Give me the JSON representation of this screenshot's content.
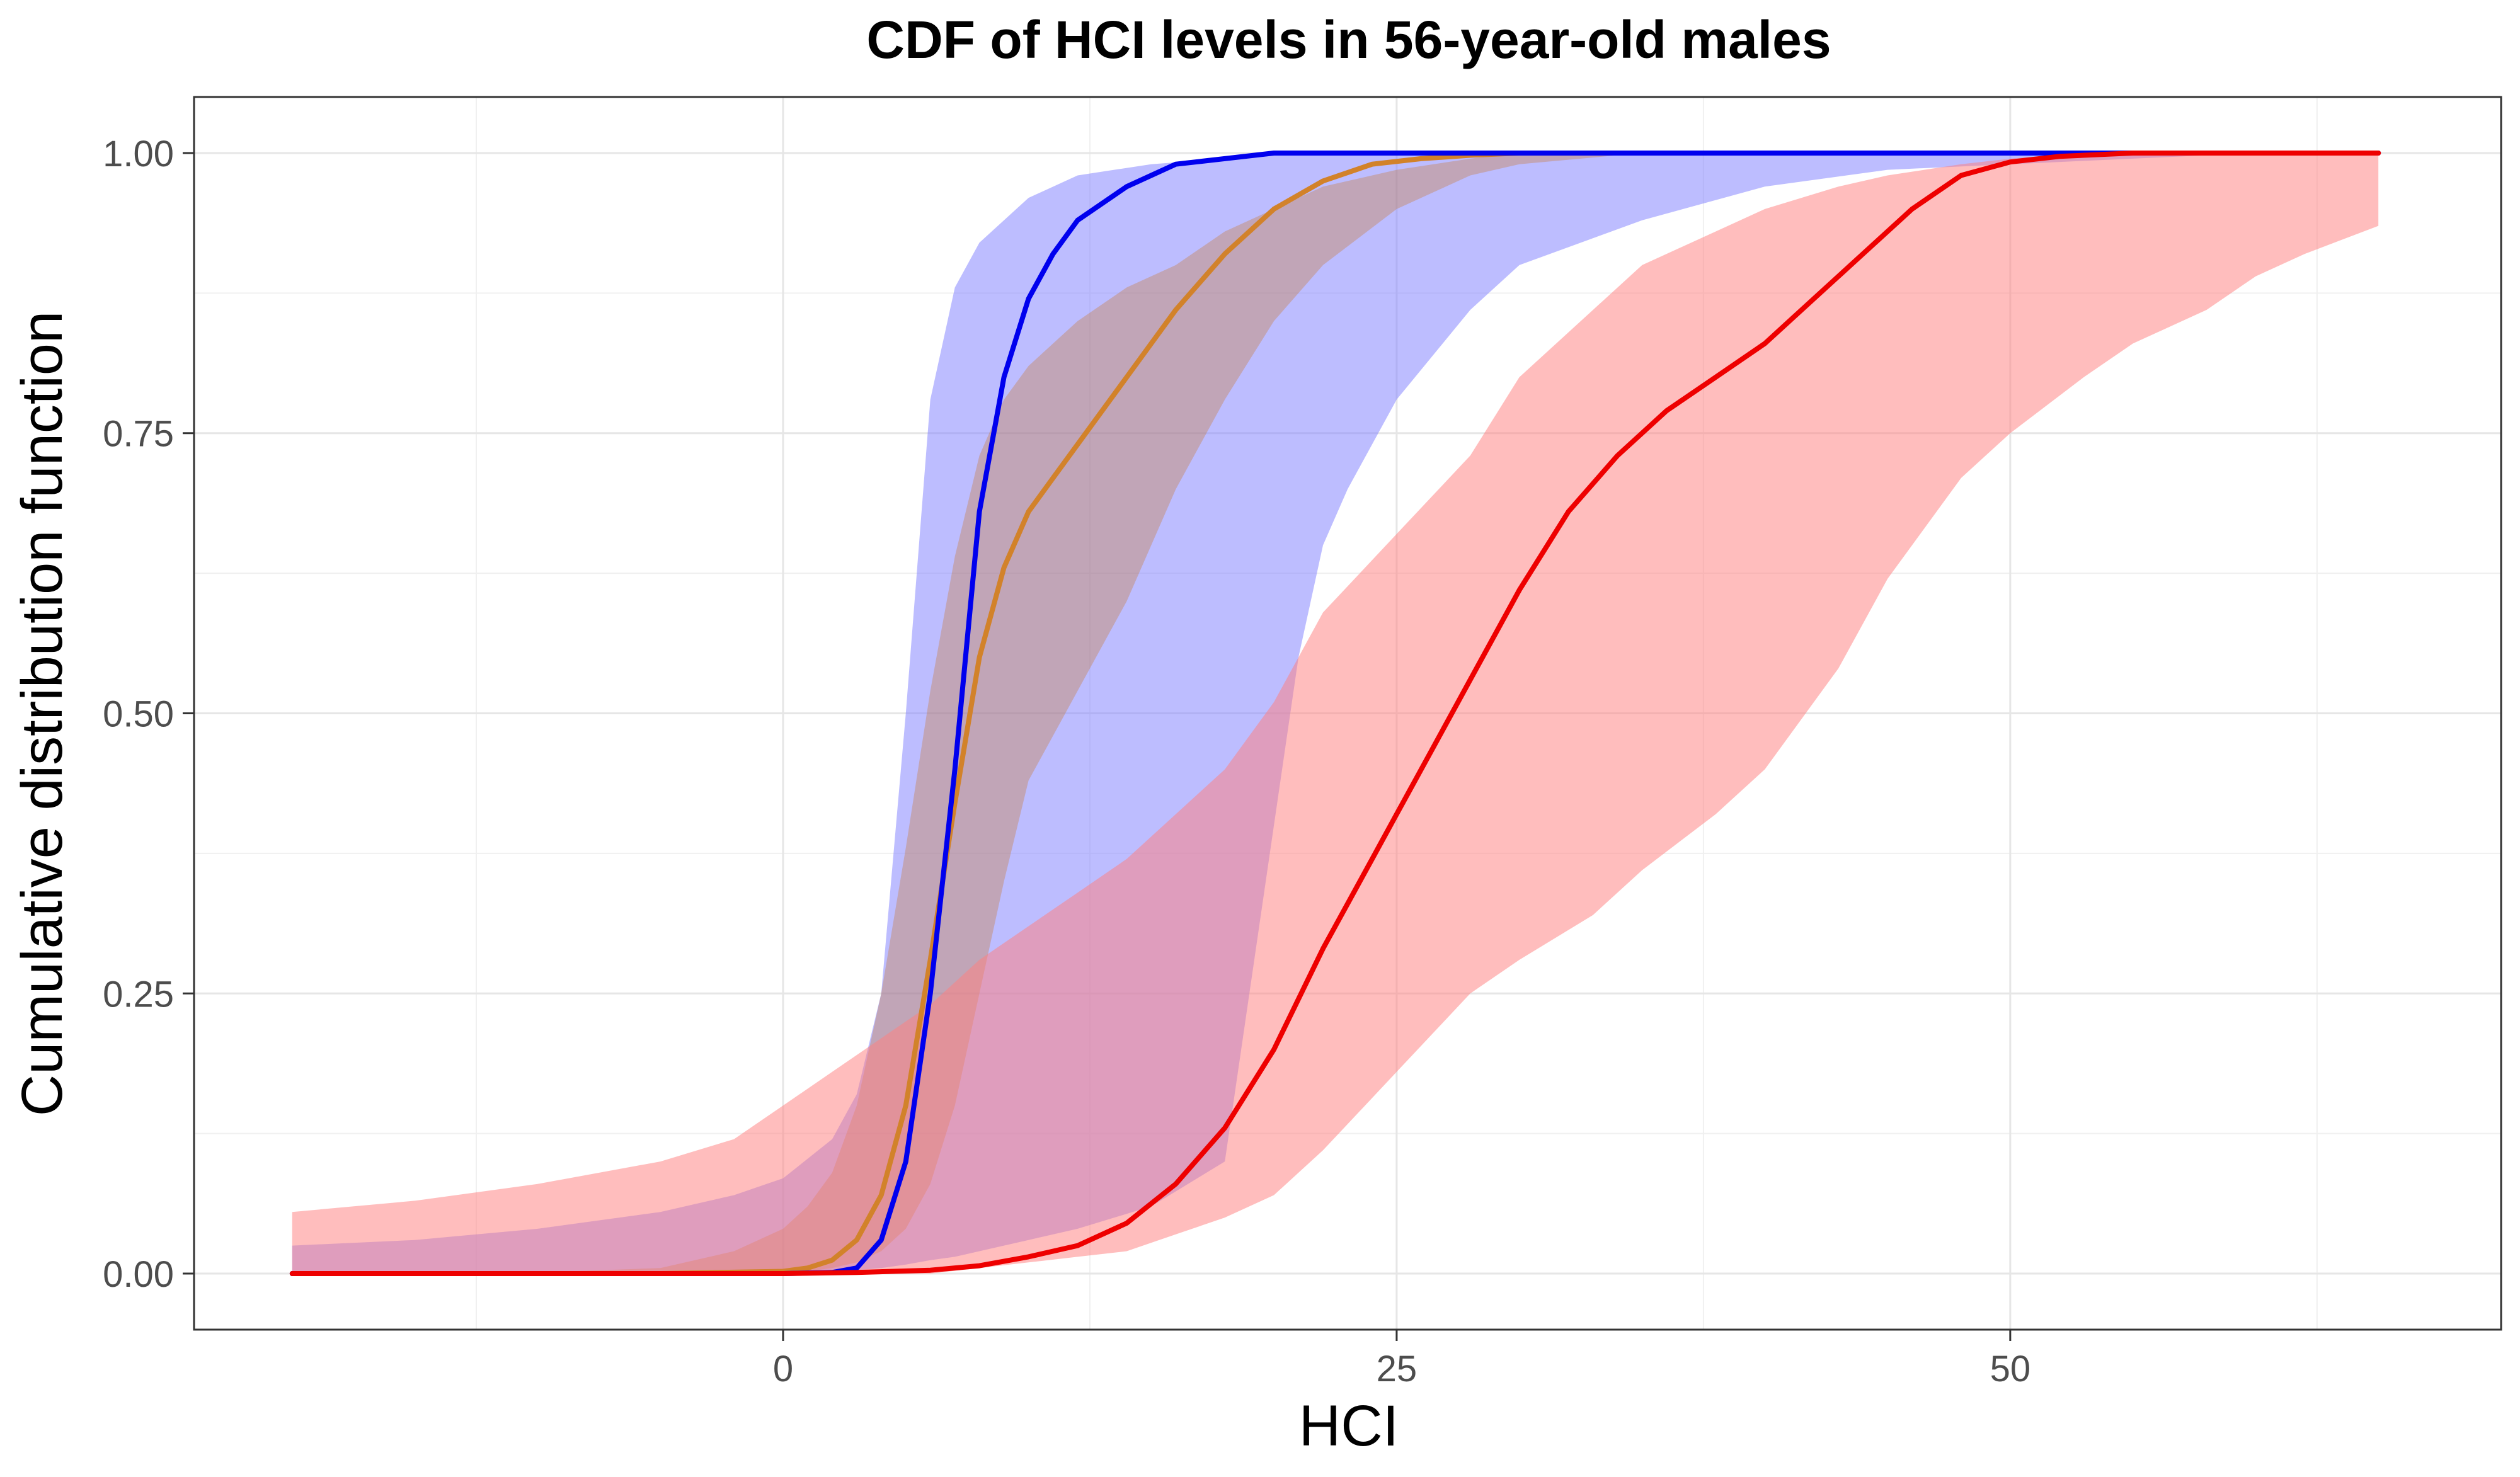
{
  "chart_data": {
    "type": "line",
    "title": "CDF of HCI levels in 56-year-old males",
    "xlabel": "HCI",
    "ylabel": "Cumulative distribution function",
    "xlim": [
      -24,
      70
    ],
    "ylim": [
      -0.05,
      1.05
    ],
    "x_ticks": [
      0,
      25,
      50
    ],
    "x_tick_labels": [
      "0",
      "25",
      "50"
    ],
    "y_ticks": [
      0,
      0.25,
      0.5,
      0.75,
      1.0
    ],
    "y_tick_labels": [
      "0.00",
      "0.25",
      "0.50",
      "0.75",
      "1.00"
    ],
    "grid": true,
    "bands": [
      {
        "name": "blue band",
        "color": "#8080ff",
        "opacity": 0.52,
        "x": [
          -20,
          -15,
          -10,
          -5,
          -2,
          0,
          2,
          3,
          4,
          5,
          6,
          7,
          8,
          10,
          12,
          15,
          18,
          20,
          21,
          22,
          23,
          25,
          28,
          30,
          35,
          40,
          45,
          50,
          55,
          60,
          65
        ],
        "upper": [
          0.025,
          0.03,
          0.04,
          0.055,
          0.07,
          0.085,
          0.12,
          0.16,
          0.25,
          0.5,
          0.78,
          0.88,
          0.92,
          0.96,
          0.98,
          0.99,
          0.995,
          1.0,
          1.0,
          1.0,
          1.0,
          1.0,
          1.0,
          1.0,
          1.0,
          1.0,
          1.0,
          1.0,
          1.0,
          1.0,
          1.0
        ],
        "lower": [
          0,
          0,
          0,
          0,
          0,
          0.001,
          0.002,
          0.003,
          0.005,
          0.008,
          0.012,
          0.015,
          0.02,
          0.03,
          0.04,
          0.06,
          0.1,
          0.4,
          0.55,
          0.65,
          0.7,
          0.78,
          0.86,
          0.9,
          0.94,
          0.97,
          0.985,
          0.99,
          0.995,
          1.0,
          1.0
        ]
      },
      {
        "name": "orange band",
        "color": "#c87830",
        "opacity": 0.35,
        "x": [
          -20,
          -10,
          -5,
          -2,
          0,
          1,
          2,
          3,
          4,
          5,
          6,
          7,
          8,
          9,
          10,
          12,
          14,
          16,
          18,
          20,
          22,
          25,
          28,
          30,
          35,
          40,
          50,
          60,
          65
        ],
        "upper": [
          0,
          0.001,
          0.005,
          0.02,
          0.04,
          0.06,
          0.09,
          0.15,
          0.25,
          0.38,
          0.52,
          0.64,
          0.73,
          0.78,
          0.81,
          0.85,
          0.88,
          0.9,
          0.93,
          0.95,
          0.97,
          0.985,
          0.995,
          1.0,
          1.0,
          1.0,
          1.0,
          1.0,
          1.0
        ],
        "lower": [
          0,
          0,
          0,
          0,
          0.001,
          0.002,
          0.005,
          0.01,
          0.02,
          0.04,
          0.08,
          0.15,
          0.25,
          0.35,
          0.44,
          0.52,
          0.6,
          0.7,
          0.78,
          0.85,
          0.9,
          0.95,
          0.98,
          0.99,
          1.0,
          1.0,
          1.0,
          1.0,
          1.0
        ]
      },
      {
        "name": "red band",
        "color": "#ff8080",
        "opacity": 0.52,
        "x": [
          -20,
          -15,
          -10,
          -5,
          -2,
          0,
          2,
          4,
          6,
          8,
          10,
          12,
          14,
          16,
          18,
          20,
          22,
          25,
          28,
          30,
          33,
          35,
          38,
          40,
          43,
          45,
          48,
          50,
          53,
          55,
          58,
          60,
          62,
          65
        ],
        "upper": [
          0.055,
          0.065,
          0.08,
          0.1,
          0.12,
          0.15,
          0.18,
          0.21,
          0.24,
          0.28,
          0.31,
          0.34,
          0.37,
          0.41,
          0.45,
          0.51,
          0.59,
          0.66,
          0.73,
          0.8,
          0.86,
          0.9,
          0.93,
          0.95,
          0.97,
          0.98,
          0.99,
          0.995,
          1.0,
          1.0,
          1.0,
          1.0,
          1.0,
          1.0
        ],
        "lower": [
          0,
          0,
          0,
          0,
          0,
          0,
          0,
          0,
          0,
          0.005,
          0.01,
          0.015,
          0.02,
          0.035,
          0.05,
          0.07,
          0.11,
          0.18,
          0.25,
          0.28,
          0.32,
          0.36,
          0.41,
          0.45,
          0.54,
          0.62,
          0.71,
          0.75,
          0.8,
          0.83,
          0.86,
          0.89,
          0.91,
          0.935
        ]
      }
    ],
    "series": [
      {
        "name": "orange line",
        "color": "#d2822a",
        "x": [
          -20,
          -5,
          0,
          1,
          2,
          3,
          4,
          5,
          6,
          7,
          8,
          9,
          10,
          11,
          12,
          14,
          16,
          18,
          20,
          22,
          24,
          26,
          28,
          30,
          32,
          35,
          65
        ],
        "values": [
          0,
          0,
          0.002,
          0.005,
          0.012,
          0.03,
          0.07,
          0.15,
          0.28,
          0.42,
          0.55,
          0.63,
          0.68,
          0.71,
          0.74,
          0.8,
          0.86,
          0.91,
          0.95,
          0.975,
          0.99,
          0.995,
          0.998,
          1.0,
          1.0,
          1.0,
          1.0
        ]
      },
      {
        "name": "blue line",
        "color": "#0000ee",
        "x": [
          -20,
          -5,
          0,
          2,
          3,
          4,
          5,
          6,
          7,
          8,
          9,
          10,
          11,
          12,
          14,
          16,
          18,
          20,
          22,
          25,
          30,
          65
        ],
        "values": [
          0,
          0,
          0,
          0.001,
          0.005,
          0.03,
          0.1,
          0.25,
          0.45,
          0.68,
          0.8,
          0.87,
          0.91,
          0.94,
          0.97,
          0.99,
          0.995,
          1.0,
          1.0,
          1.0,
          1.0,
          1.0
        ]
      },
      {
        "name": "red line",
        "color": "#ee0000",
        "x": [
          -20,
          -5,
          0,
          3,
          6,
          8,
          10,
          12,
          14,
          16,
          18,
          20,
          22,
          24,
          25,
          26,
          28,
          30,
          32,
          34,
          36,
          38,
          40,
          42,
          44,
          46,
          48,
          50,
          52,
          55,
          60,
          65
        ],
        "values": [
          0,
          0,
          0,
          0.001,
          0.003,
          0.007,
          0.015,
          0.025,
          0.045,
          0.08,
          0.13,
          0.2,
          0.29,
          0.37,
          0.41,
          0.45,
          0.53,
          0.61,
          0.68,
          0.73,
          0.77,
          0.8,
          0.83,
          0.87,
          0.91,
          0.95,
          0.98,
          0.992,
          0.997,
          1.0,
          1.0,
          1.0
        ]
      }
    ]
  }
}
